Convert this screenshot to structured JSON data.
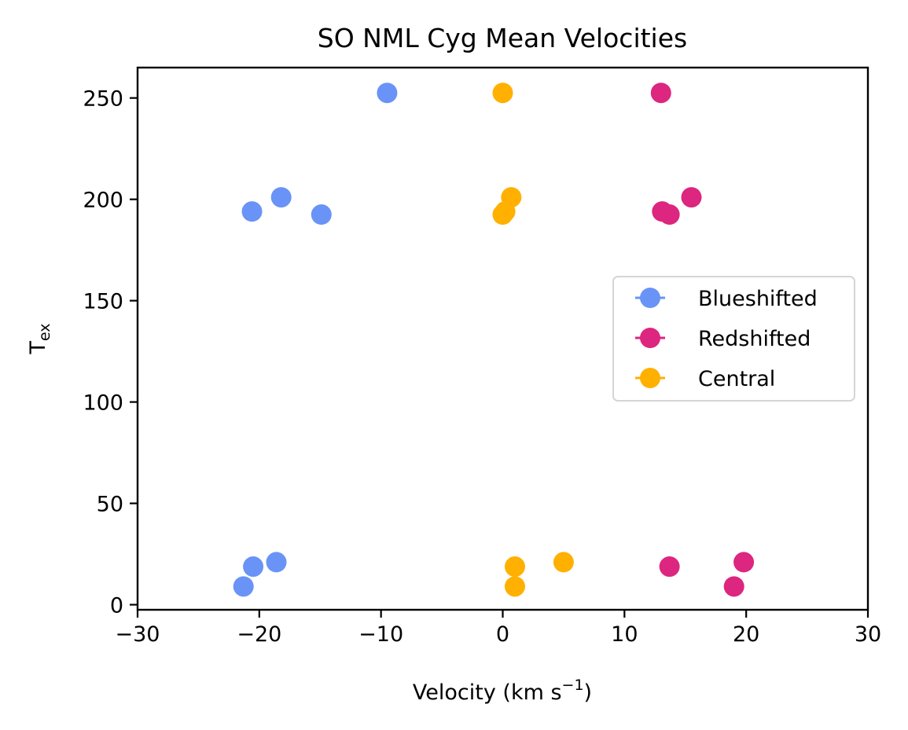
{
  "chart_data": {
    "type": "scatter",
    "title": "SO NML Cyg Mean Velocities",
    "xlabel": "Velocity (km s",
    "xlabel_sup": "−1",
    "xlabel_end": ")",
    "ylabel_base": "T",
    "ylabel_sub": "ex",
    "xlim": [
      -30,
      30
    ],
    "ylim": [
      -2.5,
      265
    ],
    "xticks": [
      {
        "value": -30,
        "label": "−30"
      },
      {
        "value": -20,
        "label": "−20"
      },
      {
        "value": -10,
        "label": "−10"
      },
      {
        "value": 0,
        "label": "0"
      },
      {
        "value": 10,
        "label": "10"
      },
      {
        "value": 20,
        "label": "20"
      },
      {
        "value": 30,
        "label": "30"
      }
    ],
    "yticks": [
      {
        "value": 0,
        "label": "0"
      },
      {
        "value": 50,
        "label": "50"
      },
      {
        "value": 100,
        "label": "100"
      },
      {
        "value": 150,
        "label": "150"
      },
      {
        "value": 200,
        "label": "200"
      },
      {
        "value": 250,
        "label": "250"
      }
    ],
    "grid": false,
    "legend_position": "center-right",
    "series": [
      {
        "name": "Blueshifted",
        "color": "#6A93F7",
        "points": [
          {
            "x": -9.5,
            "y": 252.5
          },
          {
            "x": -18.2,
            "y": 201
          },
          {
            "x": -20.6,
            "y": 194
          },
          {
            "x": -14.9,
            "y": 192.5
          },
          {
            "x": -18.6,
            "y": 21
          },
          {
            "x": -20.5,
            "y": 18.8
          },
          {
            "x": -21.3,
            "y": 9
          }
        ]
      },
      {
        "name": "Redshifted",
        "color": "#DC267F",
        "points": [
          {
            "x": 13.0,
            "y": 252.5
          },
          {
            "x": 15.5,
            "y": 201
          },
          {
            "x": 13.1,
            "y": 194
          },
          {
            "x": 13.7,
            "y": 192.5
          },
          {
            "x": 19.8,
            "y": 21
          },
          {
            "x": 13.7,
            "y": 18.8
          },
          {
            "x": 19.0,
            "y": 9
          }
        ]
      },
      {
        "name": "Central",
        "color": "#FFB000",
        "points": [
          {
            "x": 0.0,
            "y": 252.5
          },
          {
            "x": 0.7,
            "y": 201
          },
          {
            "x": 0.2,
            "y": 194
          },
          {
            "x": 0.0,
            "y": 192.5
          },
          {
            "x": 5.0,
            "y": 21
          },
          {
            "x": 1.0,
            "y": 18.8
          },
          {
            "x": 1.0,
            "y": 9
          }
        ]
      }
    ]
  }
}
